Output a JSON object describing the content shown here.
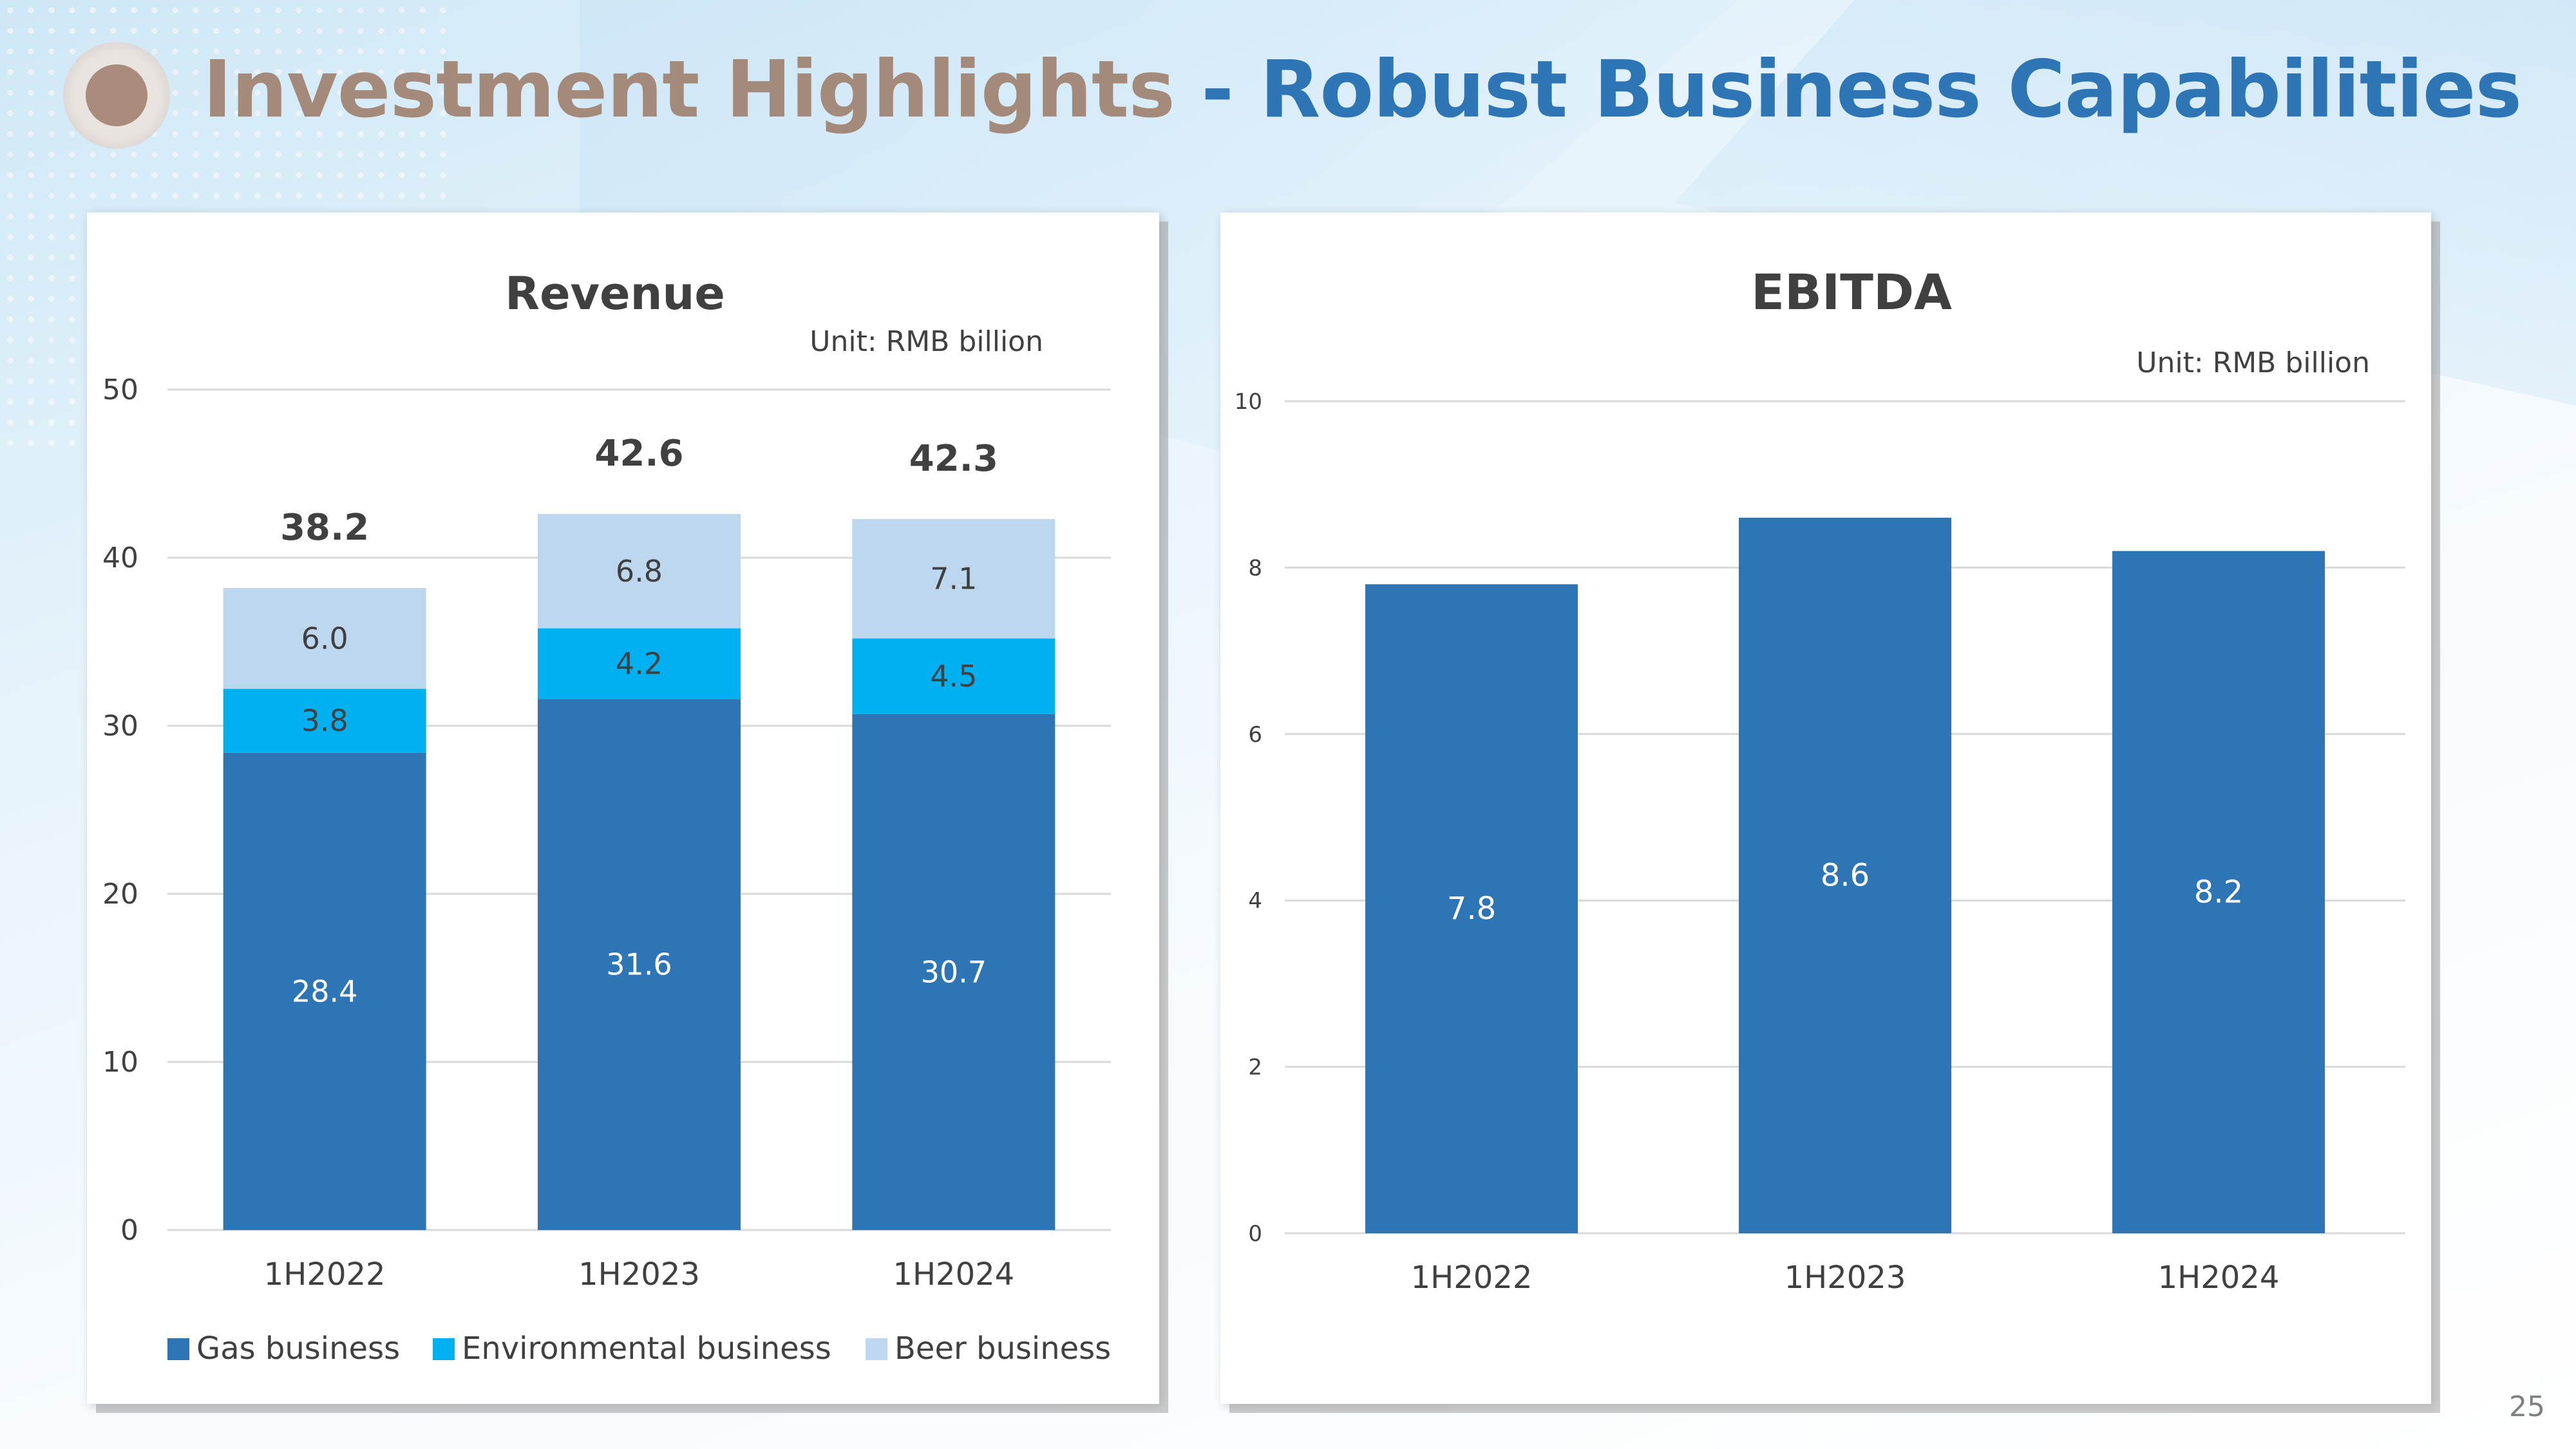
{
  "slide": {
    "title_part1": "Investment Highlights",
    "title_part2": " - Robust Business Capabilities",
    "page_number": "25"
  },
  "colors": {
    "gas": "#2e75b6",
    "environmental": "#00b0f0",
    "beer": "#bdd7ee",
    "title_brown": "#a38a7a",
    "title_blue": "#2e75b6"
  },
  "chart_data": [
    {
      "type": "bar",
      "stacked": true,
      "title": "Revenue",
      "unit": "Unit: RMB billion",
      "categories": [
        "1H2022",
        "1H2023",
        "1H2024"
      ],
      "series": [
        {
          "name": "Gas business",
          "values": [
            28.4,
            31.6,
            30.7
          ]
        },
        {
          "name": "Environmental business",
          "values": [
            3.8,
            4.2,
            4.5
          ]
        },
        {
          "name": "Beer business",
          "values": [
            6.0,
            6.8,
            7.1
          ]
        }
      ],
      "totals": [
        38.2,
        42.6,
        42.3
      ],
      "ylim": [
        0,
        50
      ],
      "yticks": [
        0,
        10,
        20,
        30,
        40,
        50
      ],
      "grid": true,
      "legend": "bottom"
    },
    {
      "type": "bar",
      "title": "EBITDA",
      "unit": "Unit: RMB billion",
      "categories": [
        "1H2022",
        "1H2023",
        "1H2024"
      ],
      "values": [
        7.8,
        8.6,
        8.2
      ],
      "ylim": [
        0,
        10
      ],
      "yticks": [
        0,
        2,
        4,
        6,
        8,
        10
      ],
      "grid": true
    }
  ]
}
